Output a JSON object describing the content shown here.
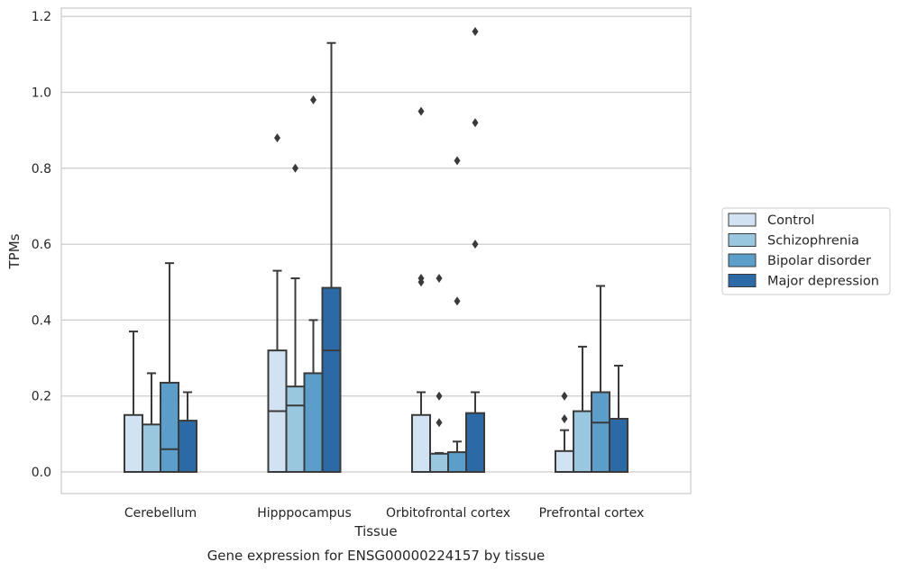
{
  "chart_data": {
    "type": "boxplot",
    "caption": "Gene expression for ENSG00000224157 by tissue",
    "xlabel": "Tissue",
    "ylabel": "TPMs",
    "ylim": [
      -0.056,
      1.222
    ],
    "yticks": [
      "0.0",
      "0.2",
      "0.4",
      "0.6",
      "0.8",
      "1.0",
      "1.2"
    ],
    "grid": "horizontal",
    "legend_position": "right",
    "categories": [
      "Cerebellum",
      "Hipppocampus",
      "Orbitofrontal cortex",
      "Prefrontal cortex"
    ],
    "series": [
      {
        "name": "Control",
        "color": "#d1e2f2",
        "boxes": [
          {
            "min": 0.0,
            "q1": 0.0,
            "median": 0.0,
            "q3": 0.15,
            "max": 0.37,
            "outliers": []
          },
          {
            "min": 0.0,
            "q1": 0.0,
            "median": 0.16,
            "q3": 0.32,
            "max": 0.53,
            "outliers": [
              0.88
            ]
          },
          {
            "min": 0.0,
            "q1": 0.0,
            "median": 0.0,
            "q3": 0.15,
            "max": 0.21,
            "outliers": [
              0.95,
              0.51,
              0.5
            ]
          },
          {
            "min": 0.0,
            "q1": 0.0,
            "median": 0.0,
            "q3": 0.055,
            "max": 0.11,
            "outliers": [
              0.2,
              0.14
            ]
          }
        ]
      },
      {
        "name": "Schizophrenia",
        "color": "#9ac7e0",
        "boxes": [
          {
            "min": 0.0,
            "q1": 0.0,
            "median": 0.0,
            "q3": 0.125,
            "max": 0.26,
            "outliers": []
          },
          {
            "min": 0.0,
            "q1": 0.0,
            "median": 0.175,
            "q3": 0.225,
            "max": 0.51,
            "outliers": [
              0.8
            ]
          },
          {
            "min": 0.0,
            "q1": 0.0,
            "median": 0.0,
            "q3": 0.048,
            "max": 0.05,
            "outliers": [
              0.51,
              0.2,
              0.13
            ]
          },
          {
            "min": 0.0,
            "q1": 0.0,
            "median": 0.0,
            "q3": 0.16,
            "max": 0.33,
            "outliers": []
          }
        ]
      },
      {
        "name": "Bipolar disorder",
        "color": "#5a9ec9",
        "boxes": [
          {
            "min": 0.0,
            "q1": 0.0,
            "median": 0.06,
            "q3": 0.235,
            "max": 0.55,
            "outliers": []
          },
          {
            "min": 0.0,
            "q1": 0.0,
            "median": 0.0,
            "q3": 0.26,
            "max": 0.4,
            "outliers": [
              0.98
            ]
          },
          {
            "min": 0.0,
            "q1": 0.0,
            "median": 0.0,
            "q3": 0.052,
            "max": 0.08,
            "outliers": [
              0.82,
              0.45
            ]
          },
          {
            "min": 0.0,
            "q1": 0.0,
            "median": 0.13,
            "q3": 0.21,
            "max": 0.49,
            "outliers": []
          }
        ]
      },
      {
        "name": "Major depression",
        "color": "#2b6aa6",
        "boxes": [
          {
            "min": 0.0,
            "q1": 0.0,
            "median": 0.0,
            "q3": 0.135,
            "max": 0.21,
            "outliers": []
          },
          {
            "min": 0.0,
            "q1": 0.0,
            "median": 0.32,
            "q3": 0.485,
            "max": 1.13,
            "outliers": []
          },
          {
            "min": 0.0,
            "q1": 0.0,
            "median": 0.0,
            "q3": 0.155,
            "max": 0.21,
            "outliers": [
              1.16,
              0.92,
              0.6
            ]
          },
          {
            "min": 0.0,
            "q1": 0.0,
            "median": 0.0,
            "q3": 0.14,
            "max": 0.28,
            "outliers": []
          }
        ]
      }
    ]
  }
}
